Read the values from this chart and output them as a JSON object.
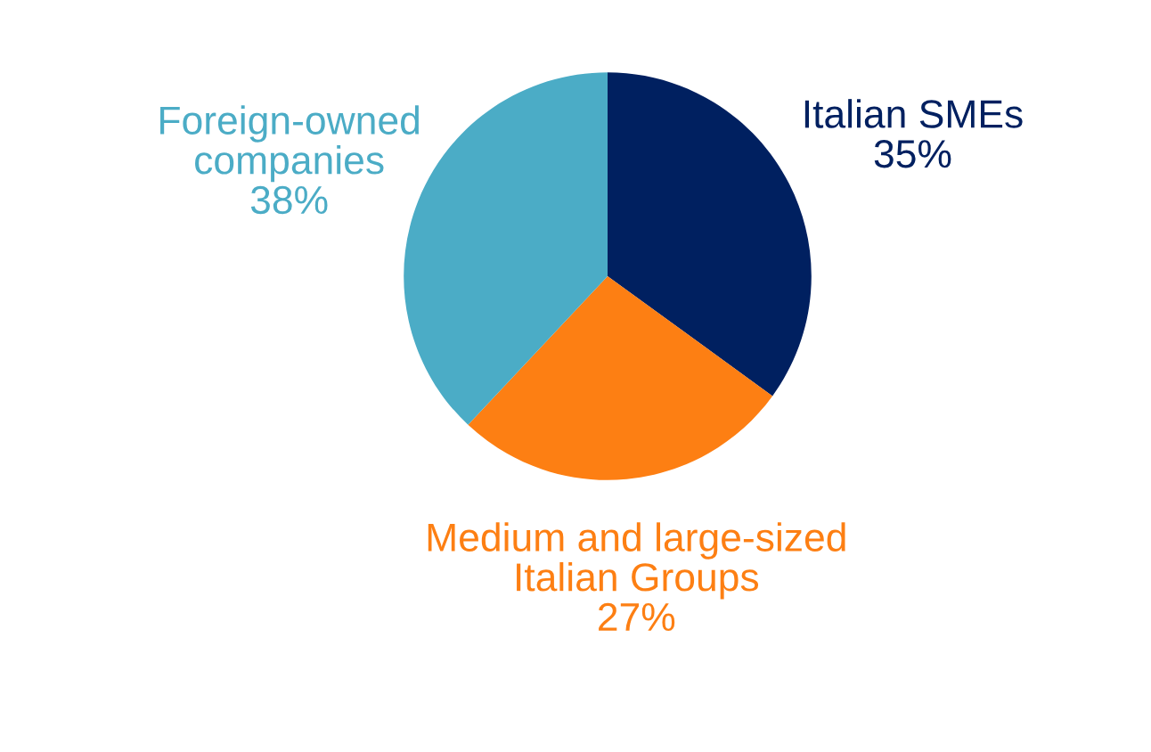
{
  "chart_data": {
    "type": "pie",
    "categories": [
      "Italian SMEs",
      "Medium and large-sized\nItalian Groups",
      "Foreign-owned\ncompanies"
    ],
    "values": [
      35,
      27,
      38
    ],
    "colors": [
      "#002060",
      "#fd7f13",
      "#4bacc6"
    ],
    "value_labels": [
      "35%",
      "27%",
      "38%"
    ]
  }
}
